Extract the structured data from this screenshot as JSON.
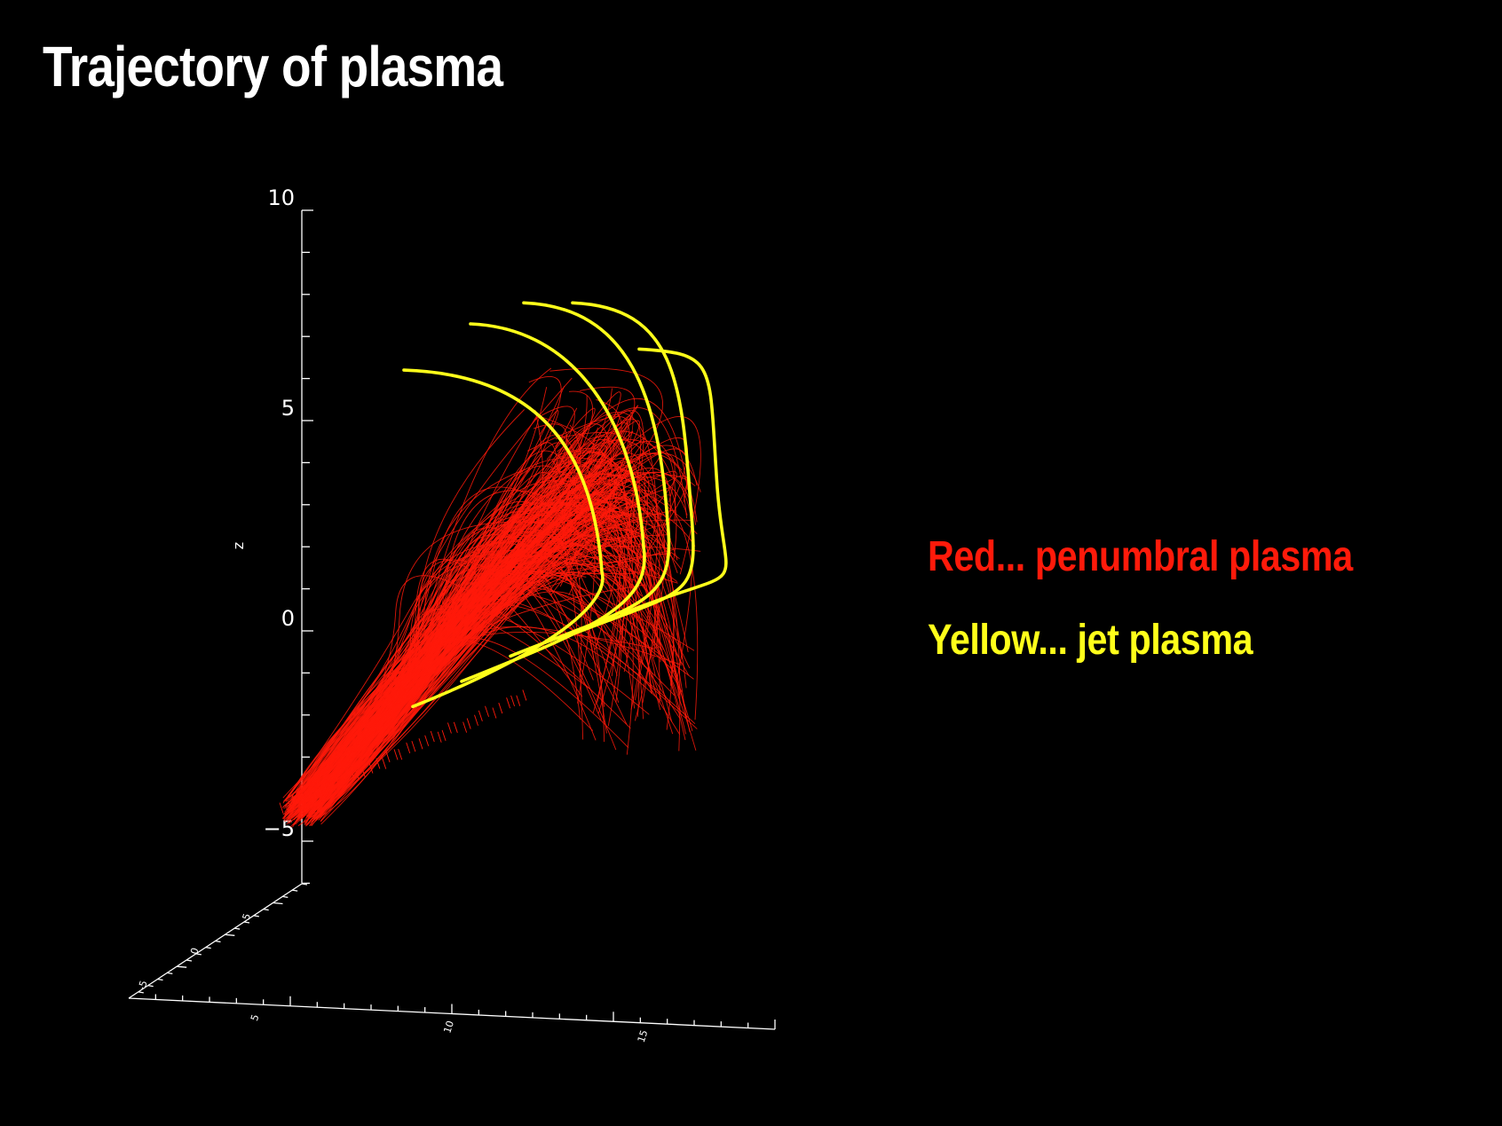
{
  "slide": {
    "title": "Trajectory of plasma"
  },
  "legend": {
    "items": [
      {
        "label": "Red... penumbral plasma",
        "color": "#ff1a0a"
      },
      {
        "label": "Yellow... jet plasma",
        "color": "#ffff1a"
      }
    ]
  },
  "chart_data": {
    "type": "line",
    "projection": "3d-perspective",
    "zlabel": "z",
    "zlim": [
      -6,
      10
    ],
    "z_ticks": [
      {
        "value": 10,
        "label": "10"
      },
      {
        "value": 5,
        "label": "5"
      },
      {
        "value": 0,
        "label": "0"
      },
      {
        "value": -5,
        "label": "-5"
      }
    ],
    "z_minor_step": 1,
    "floor_axis_a_ticks": [
      {
        "value": 5,
        "label": "5"
      },
      {
        "value": 10,
        "label": "10"
      },
      {
        "value": 15,
        "label": "15"
      }
    ],
    "floor_axis_b_ticks": [
      {
        "value": -5,
        "label": "-5"
      },
      {
        "value": 0,
        "label": "0"
      },
      {
        "value": 5,
        "label": "5"
      }
    ],
    "grid": false,
    "legend_position": "right",
    "series": [
      {
        "name": "Red... penumbral plasma",
        "color": "#ff1a0a",
        "trajectory_count": 300,
        "z_range": [
          -4.3,
          6.5
        ]
      },
      {
        "name": "Yellow... jet plasma",
        "color": "#ffff1a",
        "trajectories": [
          {
            "start_z": -1.8,
            "apex_z": 6.2
          },
          {
            "start_z": -1.2,
            "apex_z": 7.3
          },
          {
            "start_z": -0.6,
            "apex_z": 7.8
          },
          {
            "start_z": -0.2,
            "apex_z": 7.8
          },
          {
            "start_z": 0.4,
            "apex_z": 6.7
          }
        ]
      }
    ]
  }
}
